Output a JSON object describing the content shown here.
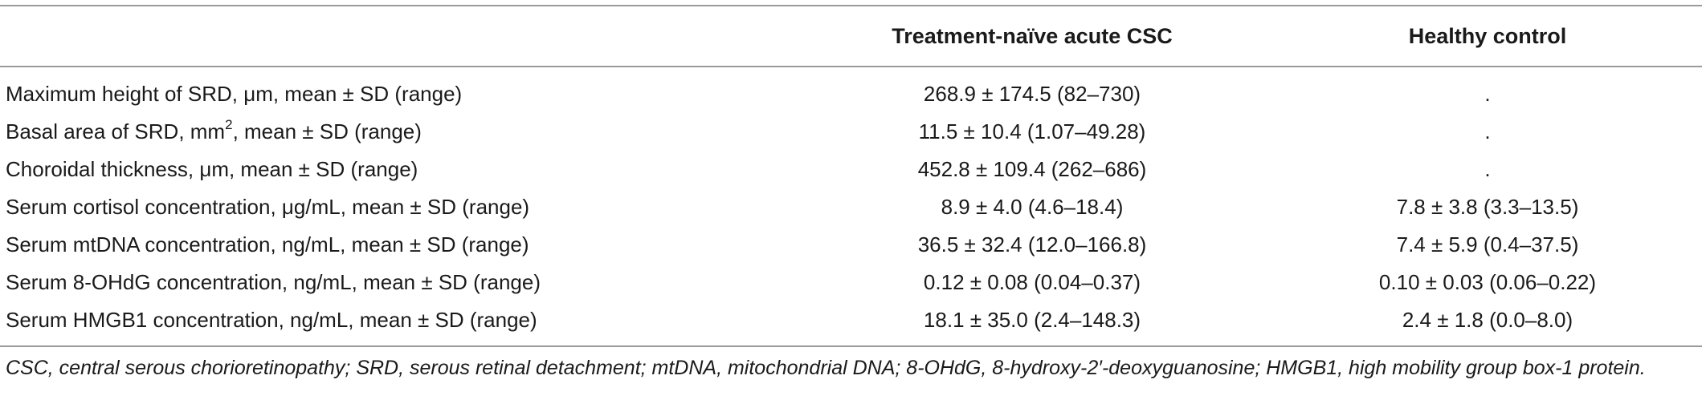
{
  "table": {
    "headers": [
      "",
      "Treatment-naïve acute CSC",
      "Healthy control"
    ],
    "rows": [
      {
        "label_pre": "Maximum height of SRD, μm, mean ± SD (range)",
        "label_sup": "",
        "label_post": "",
        "csc": "268.9 ± 174.5 (82–730)",
        "control": "."
      },
      {
        "label_pre": "Basal area of SRD, mm",
        "label_sup": "2",
        "label_post": ", mean ± SD (range)",
        "csc": "11.5 ± 10.4 (1.07–49.28)",
        "control": "."
      },
      {
        "label_pre": "Choroidal thickness, μm, mean ± SD (range)",
        "label_sup": "",
        "label_post": "",
        "csc": "452.8 ± 109.4 (262–686)",
        "control": "."
      },
      {
        "label_pre": "Serum cortisol concentration, μg/mL, mean ± SD (range)",
        "label_sup": "",
        "label_post": "",
        "csc": "8.9 ± 4.0 (4.6–18.4)",
        "control": "7.8 ± 3.8 (3.3–13.5)"
      },
      {
        "label_pre": "Serum mtDNA concentration, ng/mL, mean ± SD (range)",
        "label_sup": "",
        "label_post": "",
        "csc": "36.5 ± 32.4 (12.0–166.8)",
        "control": "7.4 ± 5.9 (0.4–37.5)"
      },
      {
        "label_pre": "Serum 8-OHdG concentration, ng/mL, mean ± SD (range)",
        "label_sup": "",
        "label_post": "",
        "csc": "0.12 ± 0.08 (0.04–0.37)",
        "control": "0.10 ± 0.03 (0.06–0.22)"
      },
      {
        "label_pre": "Serum HMGB1 concentration, ng/mL, mean ± SD (range)",
        "label_sup": "",
        "label_post": "",
        "csc": "18.1 ± 35.0 (2.4–148.3)",
        "control": "2.4 ± 1.8 (0.0–8.0)"
      }
    ]
  },
  "footnote": "CSC, central serous chorioretinopathy; SRD, serous retinal detachment; mtDNA, mitochondrial DNA; 8-OHdG, 8-hydroxy-2′-deoxyguanosine; HMGB1, high mobility group box-1 protein.",
  "colors": {
    "rule": "#9a9a9a",
    "text": "#1a1a1a"
  }
}
